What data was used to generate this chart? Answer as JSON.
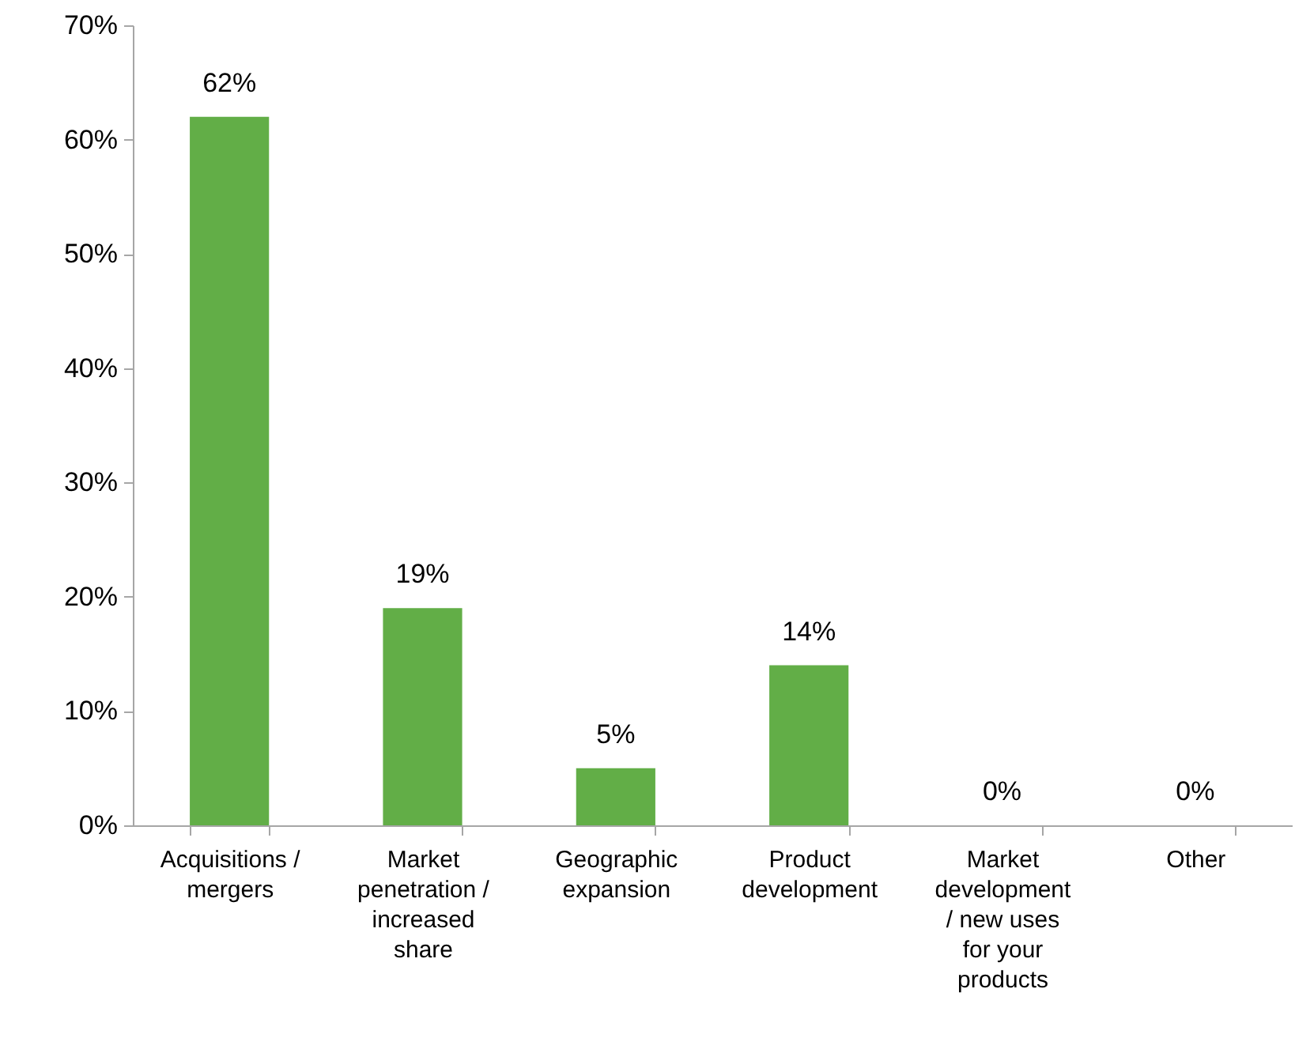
{
  "chart_data": {
    "type": "bar",
    "categories": [
      "Acquisitions / mergers",
      "Market penetration / increased share",
      "Geographic expansion",
      "Product development",
      "Market development / new uses for your products",
      "Other"
    ],
    "values": [
      62,
      19,
      5,
      14,
      0,
      0
    ],
    "value_labels": [
      "62%",
      "19%",
      "5%",
      "14%",
      "0%",
      "0%"
    ],
    "color": "#62ae47",
    "ylim": [
      0,
      70
    ],
    "yticks": [
      {
        "value": 0,
        "label": "0%"
      },
      {
        "value": 10,
        "label": "10%"
      },
      {
        "value": 20,
        "label": "20%"
      },
      {
        "value": 30,
        "label": "30%"
      },
      {
        "value": 40,
        "label": "40%"
      },
      {
        "value": 50,
        "label": "50%"
      },
      {
        "value": 60,
        "label": "60%"
      },
      {
        "value": 70,
        "label": "70%"
      }
    ]
  }
}
